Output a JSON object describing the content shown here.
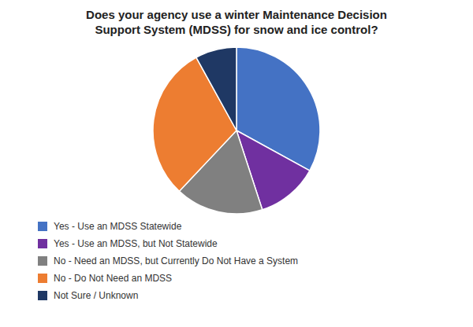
{
  "chart_data": {
    "type": "pie",
    "title": "Does your agency use a winter Maintenance Decision\nSupport System (MDSS) for snow and ice control?",
    "categories": [
      "Yes - Use an MDSS Statewide",
      "Yes - Use an MDSS, but Not Statewide",
      "No - Need an MDSS, but Currently Do Not Have a System",
      "No - Do Not Need an MDSS",
      "Not Sure / Unknown"
    ],
    "values": [
      33,
      12,
      17,
      30,
      8
    ],
    "colors": [
      "#4472C4",
      "#7030A0",
      "#808080",
      "#ED7D31",
      "#1F3864"
    ],
    "legend": "bottom"
  }
}
